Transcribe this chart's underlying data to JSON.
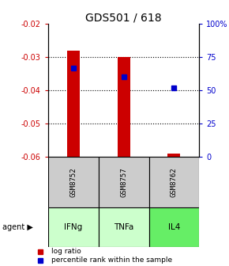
{
  "title": "GDS501 / 618",
  "samples": [
    "GSM8752",
    "GSM8757",
    "GSM8762"
  ],
  "agents": [
    "IFNg",
    "TNFa",
    "IL4"
  ],
  "ylim_left": [
    -0.06,
    -0.02
  ],
  "ylim_right": [
    0,
    100
  ],
  "yticks_left": [
    -0.06,
    -0.05,
    -0.04,
    -0.03,
    -0.02
  ],
  "yticks_right": [
    0,
    25,
    50,
    75,
    100
  ],
  "ytick_labels_right": [
    "0",
    "25",
    "50",
    "75",
    "100%"
  ],
  "bar_bottom": -0.06,
  "bar_tops": [
    -0.028,
    -0.03,
    -0.059
  ],
  "percentile_values": [
    67,
    60,
    52
  ],
  "bar_color": "#cc0000",
  "percentile_color": "#0000cc",
  "sample_bg_color": "#cccccc",
  "agent_colors": [
    "#ccffcc",
    "#ccffcc",
    "#66ee66"
  ],
  "left_color": "#cc0000",
  "right_color": "#0000cc",
  "legend_items": [
    "log ratio",
    "percentile rank within the sample"
  ],
  "bar_width": 0.25
}
